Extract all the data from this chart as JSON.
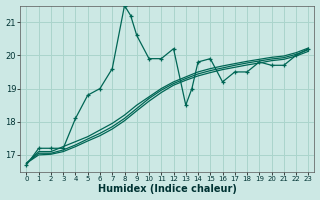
{
  "title": "",
  "xlabel": "Humidex (Indice chaleur)",
  "bg_color": "#cce8e4",
  "grid_color": "#aad4cc",
  "line_color": "#006655",
  "xlim": [
    -0.5,
    23.5
  ],
  "ylim": [
    16.5,
    21.5
  ],
  "xticks": [
    0,
    1,
    2,
    3,
    4,
    5,
    6,
    7,
    8,
    9,
    10,
    11,
    12,
    13,
    14,
    15,
    16,
    17,
    18,
    19,
    20,
    21,
    22,
    23
  ],
  "yticks": [
    17,
    18,
    19,
    20,
    21
  ],
  "series1_x": [
    0,
    1,
    2,
    3,
    4,
    5,
    6,
    7,
    8,
    8.5,
    9,
    10,
    11,
    12,
    13,
    13.5,
    14,
    15,
    16,
    17,
    18,
    19,
    20,
    21,
    22,
    23
  ],
  "series1_y": [
    16.7,
    17.2,
    17.2,
    17.2,
    18.1,
    18.8,
    19.0,
    19.6,
    21.5,
    21.2,
    20.6,
    19.9,
    19.9,
    20.2,
    18.5,
    19.0,
    19.8,
    19.9,
    19.2,
    19.5,
    19.5,
    19.8,
    19.7,
    19.7,
    20.0,
    20.2
  ],
  "series2_x": [
    0,
    1,
    2,
    3,
    4,
    5,
    6,
    7,
    8,
    9,
    10,
    11,
    12,
    13,
    14,
    15,
    16,
    17,
    18,
    19,
    20,
    21,
    22,
    23
  ],
  "series2_y": [
    16.75,
    17.1,
    17.1,
    17.25,
    17.4,
    17.55,
    17.75,
    17.95,
    18.2,
    18.5,
    18.75,
    19.0,
    19.2,
    19.35,
    19.5,
    19.6,
    19.68,
    19.75,
    19.82,
    19.88,
    19.94,
    19.98,
    20.08,
    20.22
  ],
  "series3_x": [
    0,
    1,
    2,
    3,
    4,
    5,
    6,
    7,
    8,
    9,
    10,
    11,
    12,
    13,
    14,
    15,
    16,
    17,
    18,
    19,
    20,
    21,
    22,
    23
  ],
  "series3_y": [
    16.75,
    17.05,
    17.05,
    17.15,
    17.3,
    17.48,
    17.65,
    17.85,
    18.1,
    18.4,
    18.7,
    18.95,
    19.15,
    19.3,
    19.44,
    19.54,
    19.62,
    19.7,
    19.77,
    19.83,
    19.89,
    19.93,
    20.03,
    20.17
  ],
  "series4_x": [
    0,
    1,
    2,
    3,
    4,
    5,
    6,
    7,
    8,
    9,
    10,
    11,
    12,
    13,
    14,
    15,
    16,
    17,
    18,
    19,
    20,
    21,
    22,
    23
  ],
  "series4_y": [
    16.75,
    17.0,
    17.02,
    17.1,
    17.25,
    17.42,
    17.58,
    17.78,
    18.03,
    18.33,
    18.62,
    18.88,
    19.1,
    19.25,
    19.38,
    19.48,
    19.57,
    19.64,
    19.71,
    19.77,
    19.84,
    19.88,
    19.98,
    20.12
  ]
}
